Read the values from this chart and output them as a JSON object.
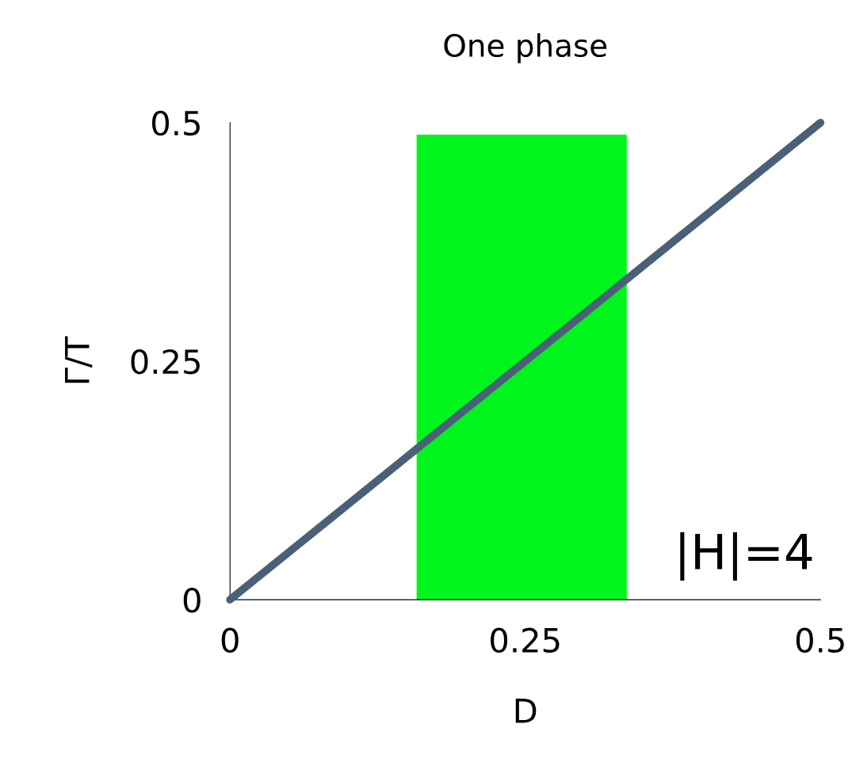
{
  "chart_data": {
    "type": "line",
    "title": "One phase",
    "xlabel": "D",
    "ylabel": "Γ/T",
    "x": [
      0,
      0.5
    ],
    "series": [
      {
        "color": "#4a6079",
        "values": [
          0,
          0.5
        ]
      }
    ],
    "xlim": [
      0,
      0.5
    ],
    "ylim": [
      0,
      0.5
    ],
    "xticks": [
      0,
      0.25,
      0.5
    ],
    "yticks": [
      0,
      0.25,
      0.5
    ],
    "bands": [
      {
        "axis": "x",
        "from": 0.158,
        "to": 0.336,
        "color": "#00f51c"
      }
    ],
    "annotations": [
      "|H|=4"
    ],
    "grid": false,
    "legend": false,
    "marker": "none",
    "line_style": "solid"
  }
}
